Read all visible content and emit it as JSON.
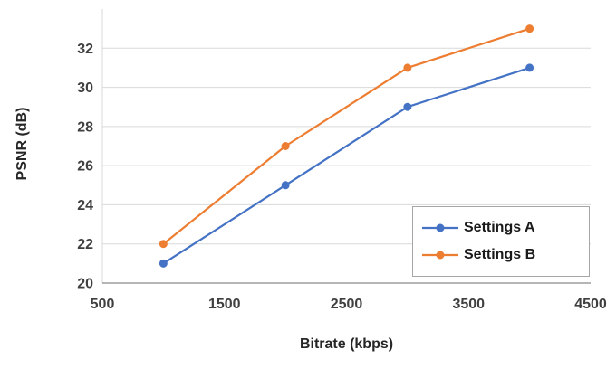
{
  "chart_data": {
    "type": "line",
    "title": "",
    "xlabel": "Bitrate (kbps)",
    "ylabel": "PSNR (dB)",
    "x": [
      1000,
      2000,
      3000,
      4000
    ],
    "series": [
      {
        "name": "Settings A",
        "color": "#4472c4",
        "values": [
          21,
          25,
          29,
          31
        ]
      },
      {
        "name": "Settings B",
        "color": "#ed7d31",
        "values": [
          22,
          27,
          31,
          33
        ]
      }
    ],
    "xlim": [
      500,
      4500
    ],
    "ylim": [
      20,
      34
    ],
    "xticks": [
      500,
      1500,
      2500,
      3500,
      4500
    ],
    "yticks": [
      20,
      22,
      24,
      26,
      28,
      30,
      32
    ],
    "grid": "horizontal",
    "legend_position": "inside-bottom-right",
    "colors": {
      "grid": "#d9d9d9",
      "y_axis_line": "#d9d9d9",
      "x_axis_line": "#9d9d9d",
      "tick_text": "#3f3f3f"
    }
  }
}
